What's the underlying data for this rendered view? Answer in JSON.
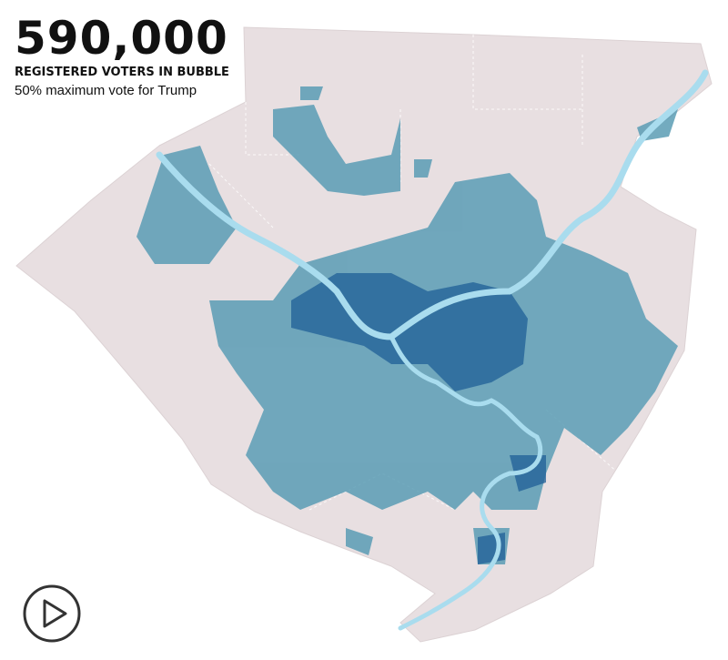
{
  "header": {
    "count": "590,000",
    "subtitle": "REGISTERED VOTERS IN BUBBLE",
    "note": "50% maximum vote for Trump"
  }
}
